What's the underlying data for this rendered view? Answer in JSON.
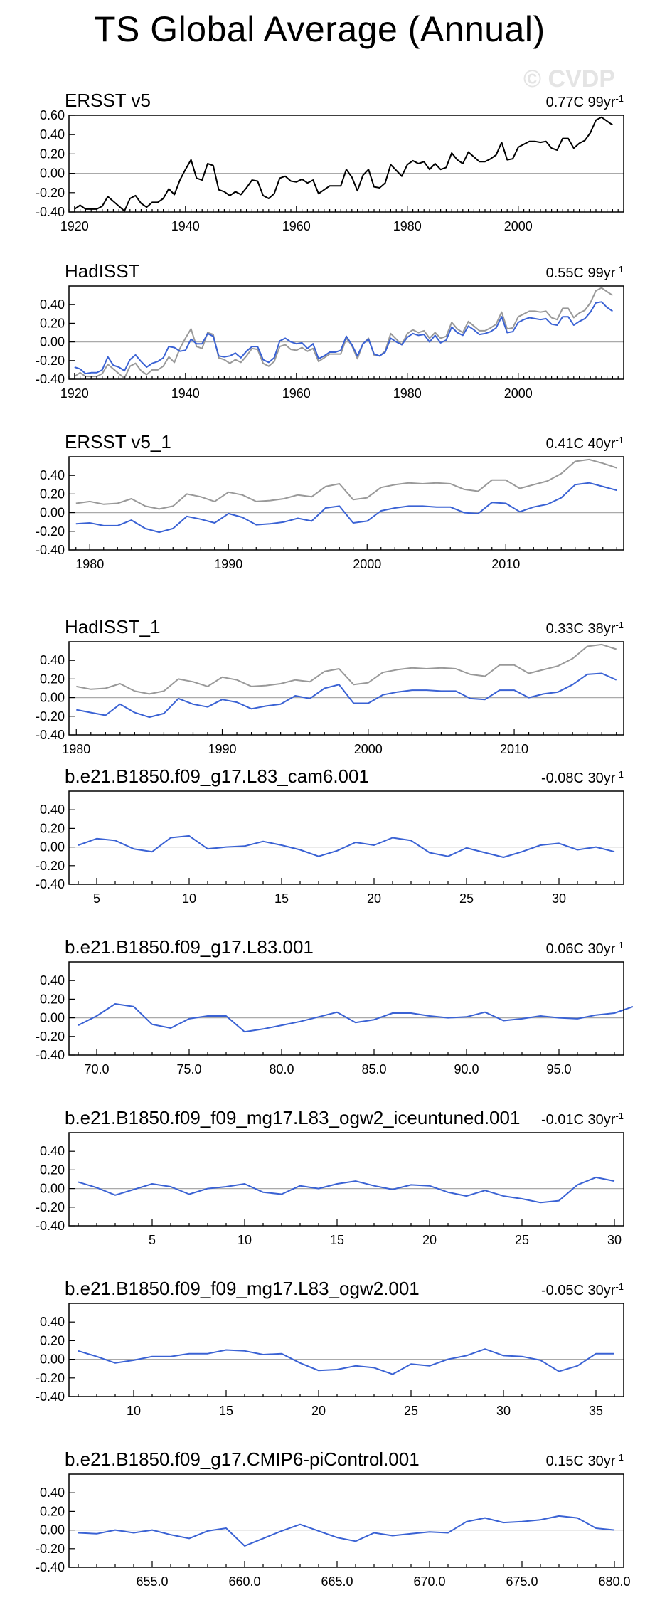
{
  "title": "TS Global Average (Annual)",
  "watermark": "© CVDP",
  "colors": {
    "obs": "#000000",
    "ref": "#999999",
    "model": "#3a62d4",
    "zero": "#aaaaaa"
  },
  "chart_data": [
    {
      "type": "line",
      "title": "ERSST v5",
      "trend": "0.77C 99yr",
      "trend_sup": "-1",
      "xlim": [
        1919,
        2019
      ],
      "ylim": [
        -0.4,
        0.6
      ],
      "yticks": [
        -0.4,
        -0.2,
        0.0,
        0.2,
        0.4,
        0.6
      ],
      "ytick_labels": [
        "-0.40",
        "-0.20",
        "0.00",
        "0.20",
        "0.40",
        "0.60"
      ],
      "xticks": [
        1920,
        1940,
        1960,
        1980,
        2000
      ],
      "xtick_labels": [
        "1920",
        "1940",
        "1960",
        "1980",
        "2000"
      ],
      "x_start": 1920,
      "series": [
        {
          "role": "obs",
          "values": [
            -0.37,
            -0.33,
            -0.37,
            -0.37,
            -0.37,
            -0.34,
            -0.24,
            -0.29,
            -0.34,
            -0.39,
            -0.26,
            -0.23,
            -0.31,
            -0.35,
            -0.3,
            -0.3,
            -0.26,
            -0.16,
            -0.22,
            -0.07,
            0.04,
            0.14,
            -0.05,
            -0.07,
            0.1,
            0.08,
            -0.17,
            -0.19,
            -0.23,
            -0.19,
            -0.22,
            -0.15,
            -0.07,
            -0.08,
            -0.23,
            -0.26,
            -0.21,
            -0.05,
            -0.03,
            -0.08,
            -0.09,
            -0.06,
            -0.1,
            -0.07,
            -0.21,
            -0.17,
            -0.13,
            -0.13,
            -0.13,
            0.04,
            -0.04,
            -0.18,
            -0.02,
            0.04,
            -0.14,
            -0.15,
            -0.1,
            0.09,
            0.03,
            -0.03,
            0.09,
            0.13,
            0.1,
            0.12,
            0.04,
            0.1,
            0.04,
            0.06,
            0.21,
            0.14,
            0.1,
            0.22,
            0.17,
            0.12,
            0.12,
            0.15,
            0.19,
            0.32,
            0.14,
            0.15,
            0.27,
            0.3,
            0.33,
            0.33,
            0.32,
            0.33,
            0.26,
            0.24,
            0.36,
            0.36,
            0.26,
            0.31,
            0.34,
            0.42,
            0.55,
            0.58,
            0.54,
            0.5
          ]
        }
      ]
    },
    {
      "type": "line",
      "title": "HadISST",
      "trend": "0.55C 99yr",
      "trend_sup": "-1",
      "xlim": [
        1919,
        2019
      ],
      "ylim": [
        -0.4,
        0.6
      ],
      "yticks": [
        -0.4,
        -0.2,
        0.0,
        0.2,
        0.4
      ],
      "ytick_labels": [
        "-0.40",
        "-0.20",
        "0.00",
        "0.20",
        "0.40"
      ],
      "xticks": [
        1920,
        1940,
        1960,
        1980,
        2000
      ],
      "xtick_labels": [
        "1920",
        "1940",
        "1960",
        "1980",
        "2000"
      ],
      "x_start": 1920,
      "series": [
        {
          "role": "ref",
          "values": [
            -0.37,
            -0.33,
            -0.37,
            -0.37,
            -0.37,
            -0.34,
            -0.24,
            -0.29,
            -0.34,
            -0.39,
            -0.26,
            -0.23,
            -0.31,
            -0.35,
            -0.3,
            -0.3,
            -0.26,
            -0.16,
            -0.22,
            -0.07,
            0.04,
            0.14,
            -0.05,
            -0.07,
            0.1,
            0.08,
            -0.17,
            -0.19,
            -0.23,
            -0.19,
            -0.22,
            -0.15,
            -0.07,
            -0.08,
            -0.23,
            -0.26,
            -0.21,
            -0.05,
            -0.03,
            -0.08,
            -0.09,
            -0.06,
            -0.1,
            -0.07,
            -0.21,
            -0.17,
            -0.13,
            -0.13,
            -0.13,
            0.04,
            -0.04,
            -0.18,
            -0.02,
            0.04,
            -0.14,
            -0.15,
            -0.1,
            0.09,
            0.03,
            -0.03,
            0.09,
            0.13,
            0.1,
            0.12,
            0.04,
            0.1,
            0.04,
            0.06,
            0.21,
            0.14,
            0.1,
            0.22,
            0.17,
            0.12,
            0.12,
            0.15,
            0.19,
            0.32,
            0.14,
            0.15,
            0.27,
            0.3,
            0.33,
            0.33,
            0.32,
            0.33,
            0.26,
            0.24,
            0.36,
            0.36,
            0.26,
            0.31,
            0.34,
            0.42,
            0.55,
            0.58,
            0.54,
            0.5
          ]
        },
        {
          "role": "model",
          "values": [
            -0.27,
            -0.29,
            -0.34,
            -0.33,
            -0.33,
            -0.3,
            -0.16,
            -0.25,
            -0.27,
            -0.31,
            -0.19,
            -0.14,
            -0.21,
            -0.27,
            -0.23,
            -0.21,
            -0.17,
            -0.05,
            -0.06,
            -0.1,
            -0.09,
            0.03,
            -0.02,
            -0.02,
            0.09,
            0.06,
            -0.15,
            -0.16,
            -0.15,
            -0.12,
            -0.17,
            -0.1,
            -0.05,
            -0.05,
            -0.19,
            -0.22,
            -0.17,
            0.01,
            0.04,
            0.0,
            -0.02,
            -0.01,
            -0.07,
            -0.02,
            -0.18,
            -0.15,
            -0.11,
            -0.11,
            -0.09,
            0.06,
            -0.03,
            -0.15,
            -0.02,
            0.03,
            -0.13,
            -0.15,
            -0.11,
            0.04,
            0.0,
            -0.03,
            0.05,
            0.09,
            0.07,
            0.08,
            0.0,
            0.07,
            -0.01,
            0.02,
            0.16,
            0.1,
            0.07,
            0.17,
            0.13,
            0.08,
            0.09,
            0.11,
            0.15,
            0.27,
            0.1,
            0.11,
            0.21,
            0.24,
            0.26,
            0.25,
            0.24,
            0.25,
            0.19,
            0.18,
            0.27,
            0.27,
            0.18,
            0.22,
            0.25,
            0.32,
            0.42,
            0.43,
            0.37,
            0.33
          ]
        }
      ]
    },
    {
      "type": "line",
      "title": "ERSST v5_1",
      "trend": "0.41C 40yr",
      "trend_sup": "-1",
      "xlim": [
        1978.5,
        2018.5
      ],
      "ylim": [
        -0.4,
        0.6
      ],
      "yticks": [
        -0.4,
        -0.2,
        0.0,
        0.2,
        0.4
      ],
      "ytick_labels": [
        "-0.40",
        "-0.20",
        "0.00",
        "0.20",
        "0.40"
      ],
      "xticks": [
        1980,
        1990,
        2000,
        2010
      ],
      "xtick_labels": [
        "1980",
        "1990",
        "2000",
        "2010"
      ],
      "x_start": 1979,
      "series": [
        {
          "role": "ref",
          "values": [
            0.1,
            0.12,
            0.09,
            0.1,
            0.15,
            0.07,
            0.04,
            0.07,
            0.2,
            0.17,
            0.12,
            0.22,
            0.19,
            0.12,
            0.13,
            0.15,
            0.19,
            0.17,
            0.28,
            0.31,
            0.14,
            0.16,
            0.27,
            0.3,
            0.32,
            0.31,
            0.32,
            0.31,
            0.25,
            0.23,
            0.35,
            0.35,
            0.26,
            0.3,
            0.34,
            0.42,
            0.55,
            0.57,
            0.53,
            0.48
          ]
        },
        {
          "role": "model",
          "values": [
            -0.12,
            -0.11,
            -0.14,
            -0.14,
            -0.08,
            -0.17,
            -0.21,
            -0.17,
            -0.04,
            -0.07,
            -0.11,
            -0.01,
            -0.05,
            -0.13,
            -0.12,
            -0.1,
            -0.06,
            -0.09,
            0.05,
            0.07,
            -0.11,
            -0.09,
            0.02,
            0.05,
            0.07,
            0.07,
            0.06,
            0.06,
            0.0,
            -0.01,
            0.11,
            0.1,
            0.01,
            0.06,
            0.09,
            0.16,
            0.3,
            0.32,
            0.28,
            0.24
          ]
        }
      ]
    },
    {
      "type": "line",
      "title": "HadISST_1",
      "trend": "0.33C 38yr",
      "trend_sup": "-1",
      "xlim": [
        1979.5,
        2017.5
      ],
      "ylim": [
        -0.4,
        0.6
      ],
      "yticks": [
        -0.4,
        -0.2,
        0.0,
        0.2,
        0.4
      ],
      "ytick_labels": [
        "-0.40",
        "-0.20",
        "0.00",
        "0.20",
        "0.40"
      ],
      "xticks": [
        1980,
        1990,
        2000,
        2010
      ],
      "xtick_labels": [
        "1980",
        "1990",
        "2000",
        "2010"
      ],
      "x_start": 1980,
      "series": [
        {
          "role": "ref",
          "values": [
            0.12,
            0.09,
            0.1,
            0.15,
            0.07,
            0.04,
            0.07,
            0.2,
            0.17,
            0.12,
            0.22,
            0.19,
            0.12,
            0.13,
            0.15,
            0.19,
            0.17,
            0.28,
            0.31,
            0.14,
            0.16,
            0.27,
            0.3,
            0.32,
            0.31,
            0.32,
            0.31,
            0.25,
            0.23,
            0.35,
            0.35,
            0.26,
            0.3,
            0.34,
            0.42,
            0.55,
            0.57,
            0.52
          ]
        },
        {
          "role": "model",
          "values": [
            -0.13,
            -0.16,
            -0.19,
            -0.07,
            -0.16,
            -0.21,
            -0.17,
            -0.01,
            -0.07,
            -0.1,
            -0.02,
            -0.05,
            -0.12,
            -0.09,
            -0.07,
            0.02,
            -0.01,
            0.1,
            0.14,
            -0.06,
            -0.06,
            0.03,
            0.06,
            0.08,
            0.08,
            0.07,
            0.07,
            -0.01,
            -0.02,
            0.08,
            0.08,
            0.0,
            0.04,
            0.06,
            0.14,
            0.25,
            0.26,
            0.19
          ]
        }
      ]
    },
    {
      "type": "line",
      "title": "b.e21.B1850.f09_g17.L83_cam6.001",
      "trend": "-0.08C 30yr",
      "trend_sup": "-1",
      "xlim": [
        3.5,
        33.5
      ],
      "ylim": [
        -0.4,
        0.6
      ],
      "yticks": [
        -0.4,
        -0.2,
        0.0,
        0.2,
        0.4
      ],
      "ytick_labels": [
        "-0.40",
        "-0.20",
        "0.00",
        "0.20",
        "0.40"
      ],
      "xticks": [
        5,
        10,
        15,
        20,
        25,
        30
      ],
      "xtick_labels": [
        "5",
        "10",
        "15",
        "20",
        "25",
        "30"
      ],
      "x_start": 4,
      "series": [
        {
          "role": "model",
          "values": [
            0.02,
            0.09,
            0.07,
            -0.02,
            -0.05,
            0.1,
            0.12,
            -0.02,
            0.0,
            0.01,
            0.06,
            0.02,
            -0.03,
            -0.1,
            -0.04,
            0.05,
            0.02,
            0.1,
            0.07,
            -0.06,
            -0.1,
            -0.01,
            -0.06,
            -0.11,
            -0.05,
            0.02,
            0.04,
            -0.03,
            0.0,
            -0.05
          ]
        }
      ]
    },
    {
      "type": "line",
      "title": "b.e21.B1850.f09_g17.L83.001",
      "trend": "0.06C 30yr",
      "trend_sup": "-1",
      "xlim": [
        68.5,
        98.5
      ],
      "ylim": [
        -0.4,
        0.6
      ],
      "yticks": [
        -0.4,
        -0.2,
        0.0,
        0.2,
        0.4
      ],
      "ytick_labels": [
        "-0.40",
        "-0.20",
        "0.00",
        "0.20",
        "0.40"
      ],
      "xticks": [
        70,
        75,
        80,
        85,
        90,
        95
      ],
      "xtick_labels": [
        "70.0",
        "75.0",
        "80.0",
        "85.0",
        "90.0",
        "95.0"
      ],
      "x_start": 69,
      "series": [
        {
          "role": "model",
          "values": [
            -0.08,
            0.02,
            0.15,
            0.12,
            -0.07,
            -0.11,
            -0.01,
            0.02,
            0.02,
            -0.15,
            -0.12,
            -0.08,
            -0.04,
            0.01,
            0.06,
            -0.05,
            -0.02,
            0.05,
            0.05,
            0.02,
            0.0,
            0.01,
            0.06,
            -0.03,
            -0.01,
            0.02,
            0.0,
            -0.01,
            0.03,
            0.05,
            0.12
          ]
        }
      ]
    },
    {
      "type": "line",
      "title": "b.e21.B1850.f09_f09_mg17.L83_ogw2_iceuntuned.001",
      "trend": "-0.01C 30yr",
      "trend_sup": "-1",
      "xlim": [
        0.5,
        30.5
      ],
      "ylim": [
        -0.4,
        0.6
      ],
      "yticks": [
        -0.4,
        -0.2,
        0.0,
        0.2,
        0.4
      ],
      "ytick_labels": [
        "-0.40",
        "-0.20",
        "0.00",
        "0.20",
        "0.40"
      ],
      "xticks": [
        5,
        10,
        15,
        20,
        25,
        30
      ],
      "xtick_labels": [
        "5",
        "10",
        "15",
        "20",
        "25",
        "30"
      ],
      "x_start": 1,
      "series": [
        {
          "role": "model",
          "values": [
            0.07,
            0.01,
            -0.07,
            -0.01,
            0.05,
            0.02,
            -0.06,
            0.0,
            0.02,
            0.05,
            -0.04,
            -0.06,
            0.03,
            0.0,
            0.05,
            0.08,
            0.03,
            -0.01,
            0.04,
            0.03,
            -0.04,
            -0.08,
            -0.02,
            -0.08,
            -0.11,
            -0.15,
            -0.13,
            0.04,
            0.12,
            0.08
          ]
        }
      ]
    },
    {
      "type": "line",
      "title": "b.e21.B1850.f09_f09_mg17.L83_ogw2.001",
      "trend": "-0.05C 30yr",
      "trend_sup": "-1",
      "xlim": [
        6.5,
        36.5
      ],
      "ylim": [
        -0.4,
        0.6
      ],
      "yticks": [
        -0.4,
        -0.2,
        0.0,
        0.2,
        0.4
      ],
      "ytick_labels": [
        "-0.40",
        "-0.20",
        "0.00",
        "0.20",
        "0.40"
      ],
      "xticks": [
        10,
        15,
        20,
        25,
        30,
        35
      ],
      "xtick_labels": [
        "10",
        "15",
        "20",
        "25",
        "30",
        "35"
      ],
      "x_start": 7,
      "series": [
        {
          "role": "model",
          "values": [
            0.09,
            0.03,
            -0.04,
            -0.01,
            0.03,
            0.03,
            0.06,
            0.06,
            0.1,
            0.09,
            0.05,
            0.06,
            -0.04,
            -0.12,
            -0.11,
            -0.07,
            -0.09,
            -0.16,
            -0.05,
            -0.07,
            0.0,
            0.04,
            0.11,
            0.04,
            0.03,
            -0.01,
            -0.13,
            -0.07,
            0.06,
            0.06
          ]
        }
      ]
    },
    {
      "type": "line",
      "title": "b.e21.B1850.f09_g17.CMIP6-piControl.001",
      "trend": "0.15C 30yr",
      "trend_sup": "-1",
      "xlim": [
        650.5,
        680.5
      ],
      "ylim": [
        -0.4,
        0.6
      ],
      "yticks": [
        -0.4,
        -0.2,
        0.0,
        0.2,
        0.4
      ],
      "ytick_labels": [
        "-0.40",
        "-0.20",
        "0.00",
        "0.20",
        "0.40"
      ],
      "xticks": [
        655,
        660,
        665,
        670,
        675,
        680
      ],
      "xtick_labels": [
        "655.0",
        "660.0",
        "665.0",
        "670.0",
        "675.0",
        "680.0"
      ],
      "x_start": 651,
      "series": [
        {
          "role": "model",
          "values": [
            -0.03,
            -0.04,
            0.0,
            -0.03,
            0.0,
            -0.05,
            -0.09,
            -0.01,
            0.02,
            -0.17,
            -0.09,
            -0.01,
            0.06,
            -0.01,
            -0.08,
            -0.12,
            -0.03,
            -0.06,
            -0.04,
            -0.02,
            -0.03,
            0.09,
            0.13,
            0.08,
            0.09,
            0.11,
            0.15,
            0.13,
            0.02,
            0.0
          ]
        }
      ]
    }
  ]
}
